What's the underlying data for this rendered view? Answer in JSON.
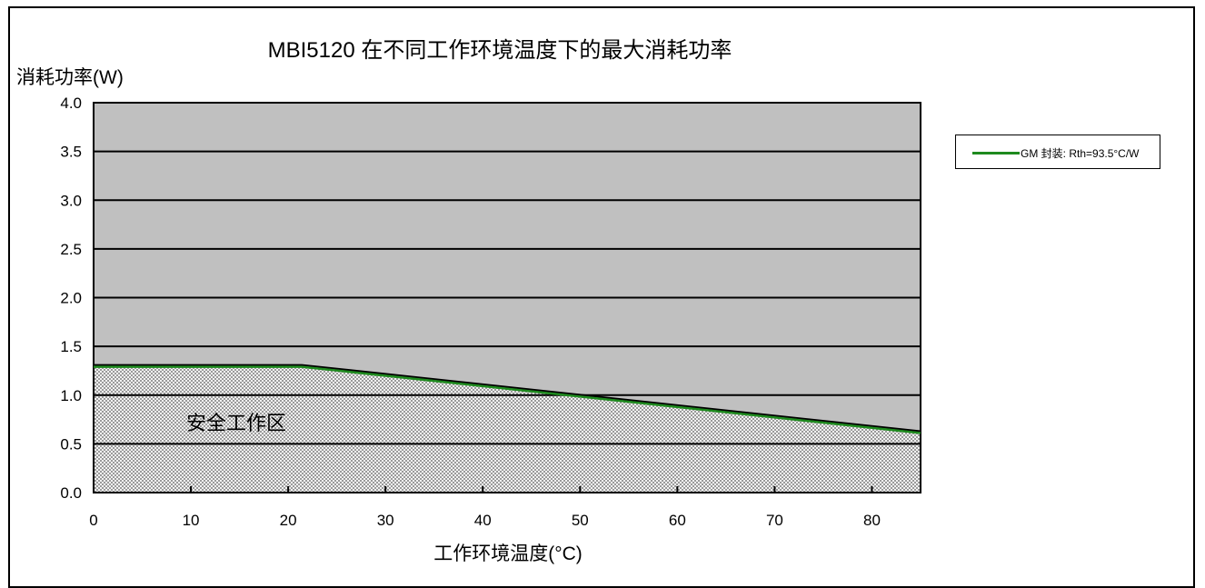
{
  "chart_data": {
    "type": "line",
    "title": "MBI5120 在不同工作环境温度下的最大消耗功率",
    "xlabel": "工作环境温度(°C)",
    "ylabel": "消耗功率(W)",
    "xlim": [
      0,
      85
    ],
    "ylim": [
      0,
      4
    ],
    "xticks": [
      "0",
      "10",
      "20",
      "30",
      "40",
      "50",
      "60",
      "70",
      "80"
    ],
    "yticks": [
      "0.0",
      "0.5",
      "1.0",
      "1.5",
      "2.0",
      "2.5",
      "3.0",
      "3.5",
      "4.0"
    ],
    "grid": true,
    "legend_position": "right",
    "area_label": "安全工作区",
    "series": [
      {
        "name": "GM 封装: Rth=93.5°C/W",
        "color": "#1e8a1e",
        "x": [
          0,
          21.4,
          85
        ],
        "y": [
          1.3,
          1.3,
          0.62
        ]
      }
    ],
    "plot_background": "#c0c0c0"
  }
}
